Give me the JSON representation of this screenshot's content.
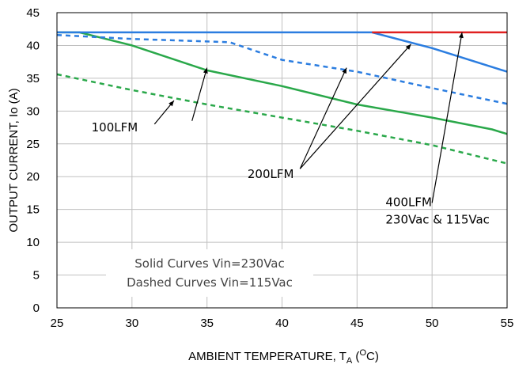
{
  "chart_data": {
    "type": "line",
    "title": "",
    "xlabel": "AMBIENT TEMPERATURE, T",
    "xlabel_sub": "A",
    "xlabel_open": " (",
    "xlabel_sup": "O",
    "xlabel_close": "C)",
    "ylabel": "OUTPUT CURRENT, Io  (A)",
    "xlim": [
      25,
      55
    ],
    "ylim": [
      0,
      45
    ],
    "xticks": [
      25,
      30,
      35,
      40,
      45,
      50,
      55
    ],
    "yticks": [
      0,
      5,
      10,
      15,
      20,
      25,
      30,
      35,
      40,
      45
    ],
    "grid": true,
    "series": [
      {
        "color": "#2aa84a",
        "dash": "",
        "x": [
          25,
          26.5,
          30,
          35,
          40,
          45,
          50,
          54,
          55
        ],
        "y": [
          42,
          42,
          40,
          36.2,
          33.8,
          31,
          29,
          27.2,
          26.5
        ]
      },
      {
        "color": "#2aa84a",
        "dash": "6,5",
        "x": [
          25,
          30,
          35,
          40,
          45,
          50,
          55
        ],
        "y": [
          35.6,
          33.2,
          31,
          29,
          27,
          24.8,
          22
        ]
      },
      {
        "color": "#2b7de0",
        "dash": "6,5",
        "x": [
          25,
          30,
          36.5,
          40,
          45,
          50,
          55
        ],
        "y": [
          41.6,
          41,
          40.5,
          37.8,
          36,
          33.5,
          31.1
        ]
      },
      {
        "color": "#2b7de0",
        "dash": "",
        "x": [
          25,
          46,
          50,
          55
        ],
        "y": [
          42,
          42,
          39.6,
          36
        ]
      },
      {
        "color": "#e02020",
        "dash": "",
        "x": [
          46,
          55
        ],
        "y": [
          42,
          42
        ]
      }
    ],
    "annotations": [
      {
        "lines": [
          "100LFM"
        ],
        "x": 27.3,
        "y": 26.9,
        "anchor": "start",
        "arrows": [
          [
            31.5,
            28,
            32.8,
            31.6
          ],
          [
            34,
            28.5,
            35,
            36.6
          ]
        ]
      },
      {
        "lines": [
          "200LFM"
        ],
        "x": 37.7,
        "y": 19.8,
        "anchor": "start",
        "arrows": [
          [
            41.2,
            21.2,
            44.3,
            36.6
          ],
          [
            41.2,
            21.2,
            48.6,
            40.2
          ]
        ]
      },
      {
        "lines": [
          "400LFM",
          "230Vac & 115Vac"
        ],
        "x": 46.9,
        "y": 15.5,
        "anchor": "start",
        "arrows": [
          [
            50,
            16,
            52,
            42
          ]
        ]
      }
    ],
    "notes": [
      "Solid Curves Vin=230Vac",
      "Dashed Curves Vin=115Vac"
    ]
  }
}
